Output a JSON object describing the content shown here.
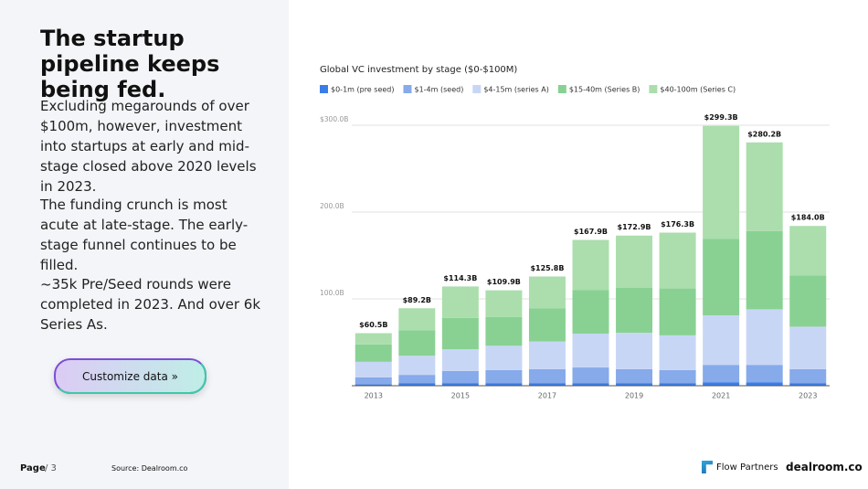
{
  "heading": "The startup pipeline keeps being fed.",
  "paragraphs": [
    "Excluding megarounds of over $100m, however, investment into startups at early and mid-stage closed above 2020 levels in 2023.",
    "The funding crunch is most acute at late-stage. The early-stage funnel continues to be filled.",
    "~35k Pre/Seed rounds were completed in 2023. And over 6k Series As."
  ],
  "button": "Customize data »",
  "footer": {
    "page_label": "Page",
    "page_number": "/ 3",
    "source": "Source: Dealroom.co",
    "logo_left": "Flow Partners",
    "logo_right": "dealroom.co"
  },
  "chart_data": {
    "type": "stacked-bar",
    "title": "Global VC investment by stage ($0-$100M)",
    "categories": [
      "2013",
      null,
      "2015",
      null,
      "2017",
      null,
      "2019",
      null,
      "2021",
      null,
      "2023"
    ],
    "series": [
      {
        "name": "$0-1m (pre seed)",
        "color": "#3b7de8",
        "values": [
          1.5,
          3,
          3,
          3,
          3,
          3,
          3,
          3,
          4,
          4,
          3
        ]
      },
      {
        "name": "$1-4m (seed)",
        "color": "#86aaea",
        "values": [
          8,
          9.5,
          14,
          15,
          16,
          18,
          16,
          15,
          20,
          20,
          16
        ]
      },
      {
        "name": "$4-15m (series A)",
        "color": "#c8d6f6",
        "values": [
          18,
          22,
          25,
          28,
          32,
          39,
          42,
          40,
          57,
          64,
          49
        ]
      },
      {
        "name": "$15-40m (Series B)",
        "color": "#88d193",
        "values": [
          20,
          29.5,
          36,
          33,
          38,
          50,
          52,
          54,
          88,
          90,
          59
        ]
      },
      {
        "name": "$40-100m (Series C)",
        "color": "#abdeac",
        "values": [
          13,
          25.2,
          36.3,
          30.9,
          36.8,
          57.9,
          59.9,
          64.3,
          130.3,
          102.2,
          57
        ]
      }
    ],
    "totals": {
      "values": [
        60.5,
        89.2,
        114.3,
        109.9,
        125.8,
        167.9,
        172.9,
        176.3,
        299.3,
        280.2,
        184.0
      ],
      "value_labels": [
        "$60.5B",
        "$89.2B",
        "$114.3B",
        "$109.9B",
        "$125.8B",
        "$167.9B",
        "$172.9B",
        "$176.3B",
        "$299.3B",
        "$280.2B",
        "$184.0B"
      ]
    },
    "ylim": [
      0,
      300
    ],
    "yticks": [
      {
        "value": 100,
        "label": "100.0B"
      },
      {
        "value": 200,
        "label": "200.0B"
      },
      {
        "value": 300,
        "label": "$300.0B"
      }
    ],
    "grid": true
  }
}
